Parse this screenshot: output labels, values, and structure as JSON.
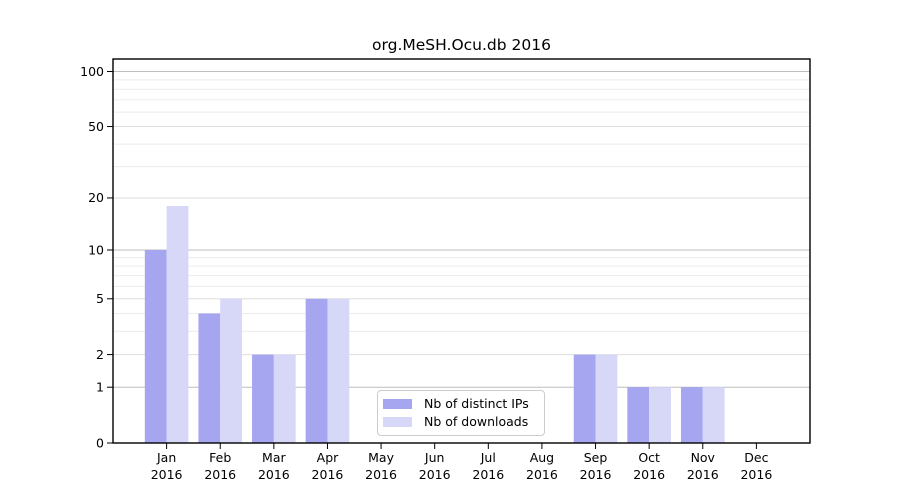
{
  "figure": {
    "background": "#ffffff"
  },
  "chart_data": {
    "type": "bar",
    "title": "org.MeSH.Ocu.db 2016",
    "categories": [
      "Jan 2016",
      "Feb 2016",
      "Mar 2016",
      "Apr 2016",
      "May 2016",
      "Jun 2016",
      "Jul 2016",
      "Aug 2016",
      "Sep 2016",
      "Oct 2016",
      "Nov 2016",
      "Dec 2016"
    ],
    "series": [
      {
        "name": "Nb of distinct IPs",
        "color": "#a5a5f0",
        "values": [
          10,
          4,
          2,
          5,
          0,
          0,
          0,
          0,
          2,
          1,
          1,
          0
        ]
      },
      {
        "name": "Nb of downloads",
        "color": "#d7d7f8",
        "values": [
          18,
          5,
          2,
          5,
          0,
          0,
          0,
          0,
          2,
          1,
          1,
          0
        ]
      }
    ],
    "yscale": "log1p",
    "ylim": [
      0,
      117
    ],
    "yticks_labels": [
      "0",
      "1",
      "2",
      "5",
      "10",
      "20",
      "50",
      "100"
    ],
    "yticks_labeled_values": [
      0,
      1,
      2,
      5,
      10,
      20,
      50,
      100
    ],
    "yticks_strong": [
      1,
      10,
      100
    ],
    "yticks_mid": [
      2,
      5,
      20,
      50
    ],
    "yticks_minor": [
      3,
      4,
      6,
      7,
      8,
      9,
      30,
      40,
      60,
      70,
      80,
      90
    ],
    "grid": true,
    "legend_position": "lower-center",
    "colors": {
      "grid_strong": "#bdbdbd",
      "grid_mid": "#dedede",
      "grid_minor": "#ececec",
      "axis": "#000000",
      "text": "#000000",
      "legend_border": "#cccccc",
      "legend_bg": "#ffffff"
    }
  }
}
